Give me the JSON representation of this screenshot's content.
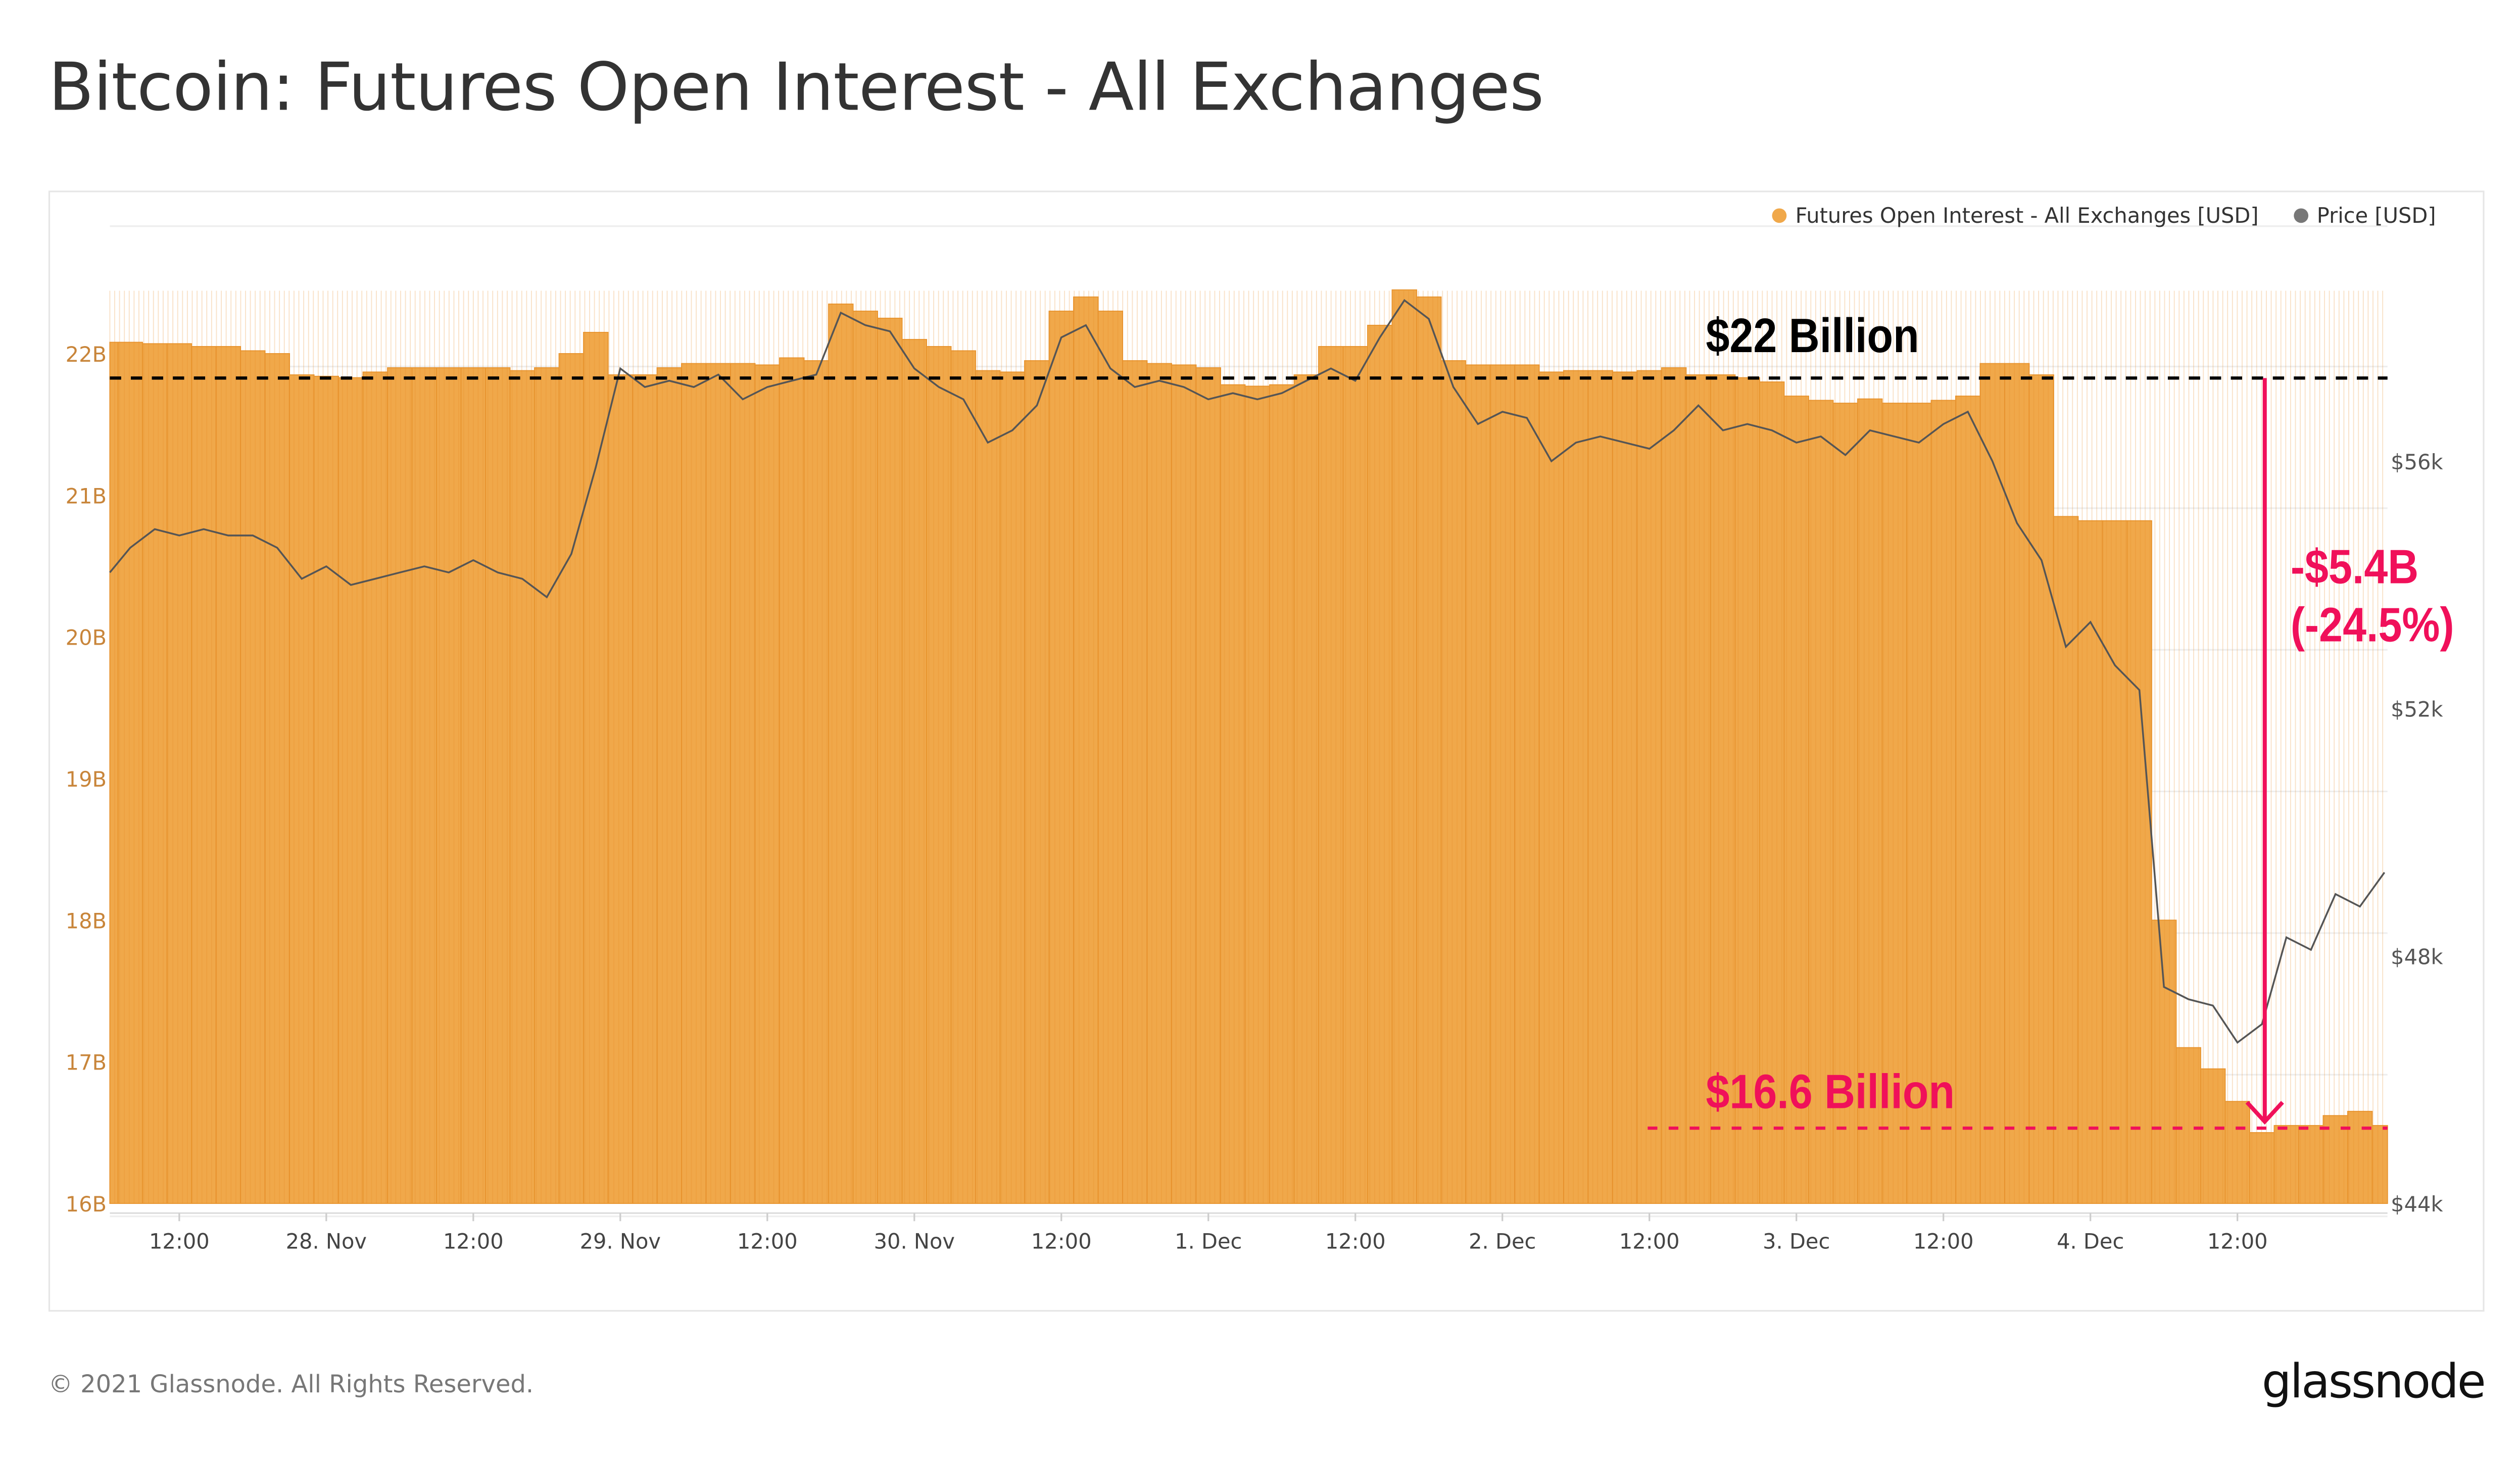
{
  "title": "Bitcoin: Futures Open Interest - All Exchanges",
  "footer": {
    "copyright": "© 2021 Glassnode. All Rights Reserved.",
    "logo": "glassnode",
    "watermark": "glassnode"
  },
  "colors": {
    "oi": "#f0a84a",
    "oi_stroke": "#e89530",
    "price": "#555555",
    "highlight": "#f0105a",
    "left_axis": "#c8853a"
  },
  "annotations": {
    "top_label": "$22 Billion",
    "top_level": 21.93,
    "bottom_label": "$16.6 Billion",
    "bottom_level": 16.6,
    "change_label": "-$5.4B",
    "change_pct": "(-24.5%)"
  },
  "chart_data": {
    "type": "bar+line",
    "title": "Bitcoin: Futures Open Interest - All Exchanges",
    "legend": {
      "placement": "top-right",
      "entries": [
        "Futures Open Interest - All Exchanges [USD]",
        "Price [USD]"
      ]
    },
    "grid": true,
    "xlim": [
      "2021-11-27 06:20",
      "2021-12-05 00:15"
    ],
    "x_ticks": [
      {
        "t": "2021-11-27 12:00",
        "label": "12:00"
      },
      {
        "t": "2021-11-28 00:00",
        "label": "28. Nov"
      },
      {
        "t": "2021-11-28 12:00",
        "label": "12:00"
      },
      {
        "t": "2021-11-29 00:00",
        "label": "29. Nov"
      },
      {
        "t": "2021-11-29 12:00",
        "label": "12:00"
      },
      {
        "t": "2021-11-30 00:00",
        "label": "30. Nov"
      },
      {
        "t": "2021-11-30 12:00",
        "label": "12:00"
      },
      {
        "t": "2021-12-01 00:00",
        "label": "1. Dec"
      },
      {
        "t": "2021-12-01 12:00",
        "label": "12:00"
      },
      {
        "t": "2021-12-02 00:00",
        "label": "2. Dec"
      },
      {
        "t": "2021-12-02 12:00",
        "label": "12:00"
      },
      {
        "t": "2021-12-03 00:00",
        "label": "3. Dec"
      },
      {
        "t": "2021-12-03 12:00",
        "label": "12:00"
      },
      {
        "t": "2021-12-04 00:00",
        "label": "4. Dec"
      },
      {
        "t": "2021-12-04 12:00",
        "label": "12:00"
      }
    ],
    "y_left": {
      "unit": "B USD",
      "lim": [
        16,
        22.9
      ],
      "ticks": [
        16,
        17,
        18,
        19,
        20,
        21,
        22
      ],
      "tick_labels": [
        "16B",
        "17B",
        "18B",
        "19B",
        "20B",
        "21B",
        "22B"
      ]
    },
    "y_right": {
      "unit": "k USD",
      "lim": [
        44,
        59.8
      ],
      "ticks": [
        44,
        48,
        52,
        56
      ],
      "tick_labels": [
        "$44k",
        "$48k",
        "$52k",
        "$56k"
      ]
    },
    "x": [
      "2021-11-27 06:00",
      "2021-11-27 08:00",
      "2021-11-27 10:00",
      "2021-11-27 12:00",
      "2021-11-27 14:00",
      "2021-11-27 16:00",
      "2021-11-27 18:00",
      "2021-11-27 20:00",
      "2021-11-27 22:00",
      "2021-11-28 00:00",
      "2021-11-28 02:00",
      "2021-11-28 04:00",
      "2021-11-28 06:00",
      "2021-11-28 08:00",
      "2021-11-28 10:00",
      "2021-11-28 12:00",
      "2021-11-28 14:00",
      "2021-11-28 16:00",
      "2021-11-28 18:00",
      "2021-11-28 20:00",
      "2021-11-28 22:00",
      "2021-11-29 00:00",
      "2021-11-29 02:00",
      "2021-11-29 04:00",
      "2021-11-29 06:00",
      "2021-11-29 08:00",
      "2021-11-29 10:00",
      "2021-11-29 12:00",
      "2021-11-29 14:00",
      "2021-11-29 16:00",
      "2021-11-29 18:00",
      "2021-11-29 20:00",
      "2021-11-29 22:00",
      "2021-11-30 00:00",
      "2021-11-30 02:00",
      "2021-11-30 04:00",
      "2021-11-30 06:00",
      "2021-11-30 08:00",
      "2021-11-30 10:00",
      "2021-11-30 12:00",
      "2021-11-30 14:00",
      "2021-11-30 16:00",
      "2021-11-30 18:00",
      "2021-11-30 20:00",
      "2021-11-30 22:00",
      "2021-12-01 00:00",
      "2021-12-01 02:00",
      "2021-12-01 04:00",
      "2021-12-01 06:00",
      "2021-12-01 08:00",
      "2021-12-01 10:00",
      "2021-12-01 12:00",
      "2021-12-01 14:00",
      "2021-12-01 16:00",
      "2021-12-01 18:00",
      "2021-12-01 20:00",
      "2021-12-01 22:00",
      "2021-12-02 00:00",
      "2021-12-02 02:00",
      "2021-12-02 04:00",
      "2021-12-02 06:00",
      "2021-12-02 08:00",
      "2021-12-02 10:00",
      "2021-12-02 12:00",
      "2021-12-02 14:00",
      "2021-12-02 16:00",
      "2021-12-02 18:00",
      "2021-12-02 20:00",
      "2021-12-02 22:00",
      "2021-12-03 00:00",
      "2021-12-03 02:00",
      "2021-12-03 04:00",
      "2021-12-03 06:00",
      "2021-12-03 08:00",
      "2021-12-03 10:00",
      "2021-12-03 12:00",
      "2021-12-03 14:00",
      "2021-12-03 16:00",
      "2021-12-03 18:00",
      "2021-12-03 20:00",
      "2021-12-03 22:00",
      "2021-12-04 00:00",
      "2021-12-04 02:00",
      "2021-12-04 04:00",
      "2021-12-04 06:00",
      "2021-12-04 08:00",
      "2021-12-04 10:00",
      "2021-12-04 12:00",
      "2021-12-04 14:00",
      "2021-12-04 16:00",
      "2021-12-04 18:00",
      "2021-12-04 20:00",
      "2021-12-04 22:00",
      "2021-12-05 00:00"
    ],
    "series": [
      {
        "name": "Futures Open Interest - All Exchanges [USD]",
        "type": "bar",
        "axis": "left",
        "values": [
          22.08,
          22.08,
          22.07,
          22.07,
          22.05,
          22.05,
          22.02,
          22.0,
          21.85,
          21.84,
          21.83,
          21.87,
          21.9,
          21.9,
          21.9,
          21.9,
          21.9,
          21.88,
          21.9,
          22.0,
          22.15,
          21.85,
          21.85,
          21.9,
          21.93,
          21.93,
          21.93,
          21.92,
          21.97,
          21.95,
          22.35,
          22.3,
          22.25,
          22.1,
          22.05,
          22.02,
          21.88,
          21.87,
          21.95,
          22.3,
          22.4,
          22.3,
          21.95,
          21.93,
          21.92,
          21.9,
          21.78,
          21.77,
          21.78,
          21.85,
          22.05,
          22.05,
          22.2,
          22.45,
          22.4,
          21.95,
          21.92,
          21.92,
          21.92,
          21.87,
          21.88,
          21.88,
          21.87,
          21.88,
          21.9,
          21.85,
          21.85,
          21.83,
          21.8,
          21.7,
          21.67,
          21.65,
          21.68,
          21.65,
          21.65,
          21.67,
          21.7,
          21.93,
          21.93,
          21.85,
          20.85,
          20.82,
          20.82,
          20.82,
          18.0,
          17.1,
          16.95,
          16.72,
          16.5,
          16.55,
          16.55,
          16.62,
          16.65,
          16.55
        ]
      },
      {
        "name": "Price [USD]",
        "type": "line",
        "axis": "right",
        "values": [
          54.2,
          54.6,
          54.9,
          54.8,
          54.9,
          54.8,
          54.8,
          54.6,
          54.1,
          54.3,
          54.0,
          54.1,
          54.2,
          54.3,
          54.2,
          54.4,
          54.2,
          54.1,
          53.8,
          54.5,
          55.9,
          57.5,
          57.2,
          57.3,
          57.2,
          57.4,
          57.0,
          57.2,
          57.3,
          57.4,
          58.4,
          58.2,
          58.1,
          57.5,
          57.2,
          57.0,
          56.3,
          56.5,
          56.9,
          58.0,
          58.2,
          57.5,
          57.2,
          57.3,
          57.2,
          57.0,
          57.1,
          57.0,
          57.1,
          57.3,
          57.5,
          57.3,
          58.0,
          58.6,
          58.3,
          57.2,
          56.6,
          56.8,
          56.7,
          56.0,
          56.3,
          56.4,
          56.3,
          56.2,
          56.5,
          56.9,
          56.5,
          56.6,
          56.5,
          56.3,
          56.4,
          56.1,
          56.5,
          56.4,
          56.3,
          56.6,
          56.8,
          56.0,
          55.0,
          54.4,
          53.0,
          53.4,
          52.7,
          52.3,
          47.5,
          47.3,
          47.2,
          46.6,
          46.9,
          48.3,
          48.1,
          49.0,
          48.8,
          49.35
        ]
      }
    ]
  }
}
